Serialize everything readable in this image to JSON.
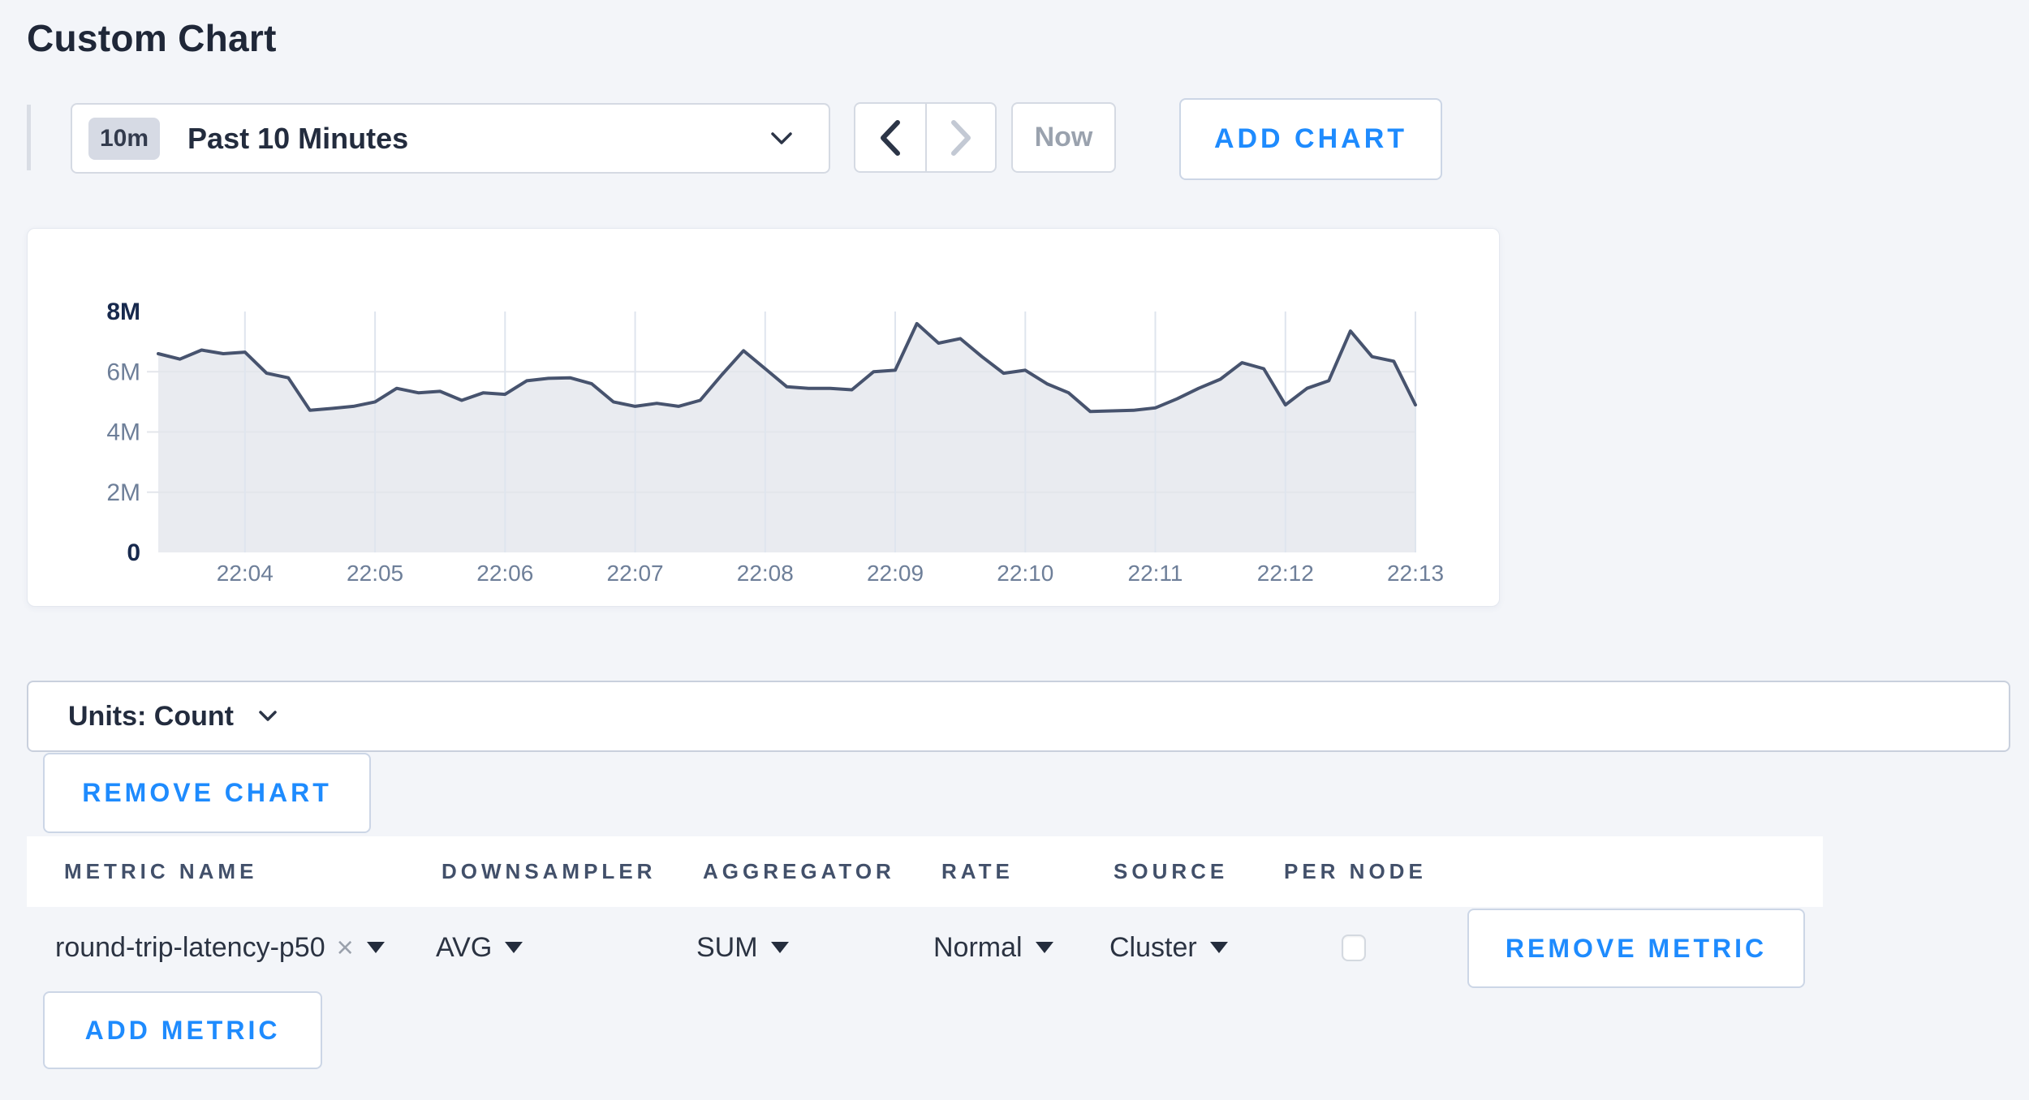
{
  "page": {
    "title": "Custom Chart"
  },
  "toolbar": {
    "range_badge": "10m",
    "range_label": "Past 10 Minutes",
    "now_label": "Now",
    "add_chart_label": "ADD CHART"
  },
  "icons": {
    "close": "×"
  },
  "units_bar": {
    "label": "Units: Count"
  },
  "buttons": {
    "remove_chart": "REMOVE CHART",
    "remove_metric": "REMOVE METRIC",
    "add_metric": "ADD METRIC"
  },
  "metrics_table": {
    "headers": [
      "METRIC NAME",
      "DOWNSAMPLER",
      "AGGREGATOR",
      "RATE",
      "SOURCE",
      "PER NODE"
    ],
    "rows": [
      {
        "metric_name": "round-trip-latency-p50",
        "downsampler": "AVG",
        "aggregator": "SUM",
        "rate": "Normal",
        "source": "Cluster",
        "per_node_checked": false
      }
    ]
  },
  "colors": {
    "accent": "#1e8bfe",
    "line": "#47536e",
    "area_fill": "#e9ebf0",
    "grid_vertical": "#dfe5ee",
    "grid_horizontal": "#e3e6eb",
    "axis_label": "#6e7f99",
    "axis_label_strong": "#17294d",
    "background": "#f3f5f9"
  },
  "chart_data": {
    "type": "area",
    "title": "",
    "unit": "Count",
    "legend": "none",
    "grid": true,
    "x_ticks": [
      "22:04",
      "22:05",
      "22:06",
      "22:07",
      "22:08",
      "22:09",
      "22:10",
      "22:11",
      "22:12",
      "22:13"
    ],
    "x_tick_first_index": 4,
    "x_tick_step": 6,
    "y_ticks": [
      "0",
      "2M",
      "4M",
      "6M",
      "8M"
    ],
    "ylim_millions": [
      0,
      8
    ],
    "series": [
      {
        "name": "round-trip-latency-p50",
        "start_time": "22:03:20",
        "sample_interval_seconds": 10,
        "values_millions": [
          6.6,
          6.42,
          6.72,
          6.6,
          6.65,
          5.95,
          5.8,
          4.72,
          4.78,
          4.85,
          5.0,
          5.45,
          5.3,
          5.35,
          5.05,
          5.3,
          5.25,
          5.7,
          5.78,
          5.8,
          5.6,
          5.0,
          4.85,
          4.95,
          4.85,
          5.05,
          5.9,
          6.7,
          6.1,
          5.5,
          5.45,
          5.45,
          5.4,
          6.0,
          6.05,
          7.6,
          6.95,
          7.1,
          6.5,
          5.95,
          6.05,
          5.6,
          5.3,
          4.68,
          4.7,
          4.72,
          4.8,
          5.1,
          5.45,
          5.75,
          6.3,
          6.1,
          4.9,
          5.45,
          5.7,
          7.35,
          6.5,
          6.35,
          4.9
        ]
      }
    ]
  }
}
